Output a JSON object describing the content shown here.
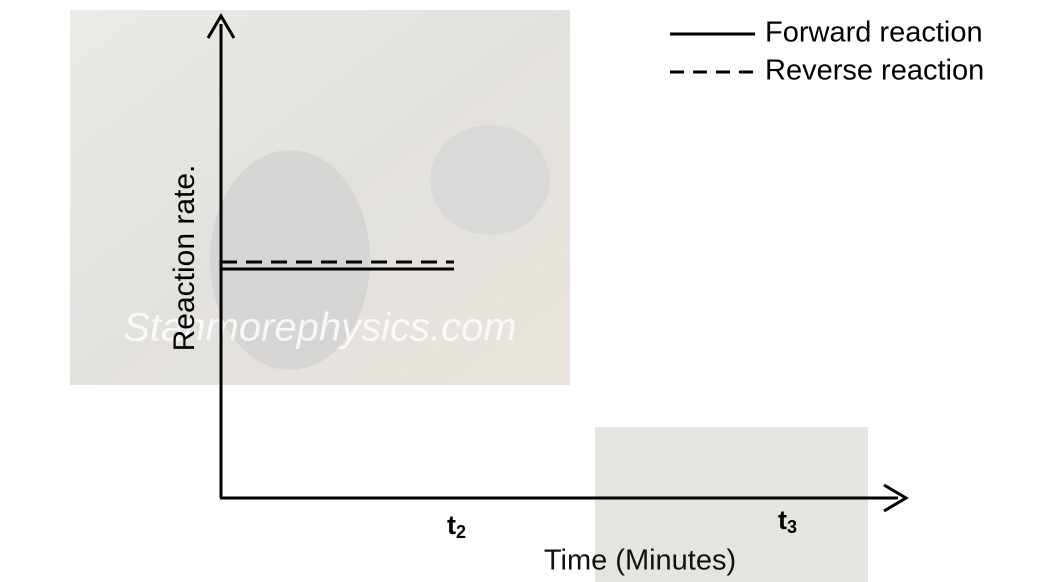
{
  "legend": [
    {
      "label": "Forward reaction",
      "style": "solid"
    },
    {
      "label": "Reverse reaction",
      "style": "dashed"
    }
  ],
  "axes": {
    "y_label": "Reaction rate.",
    "x_label": "Time (Minutes)"
  },
  "ticks": [
    {
      "label": "t",
      "subscript": "2"
    },
    {
      "label": "t",
      "subscript": "3"
    }
  ],
  "watermark": "Stanmorephysics.com"
}
